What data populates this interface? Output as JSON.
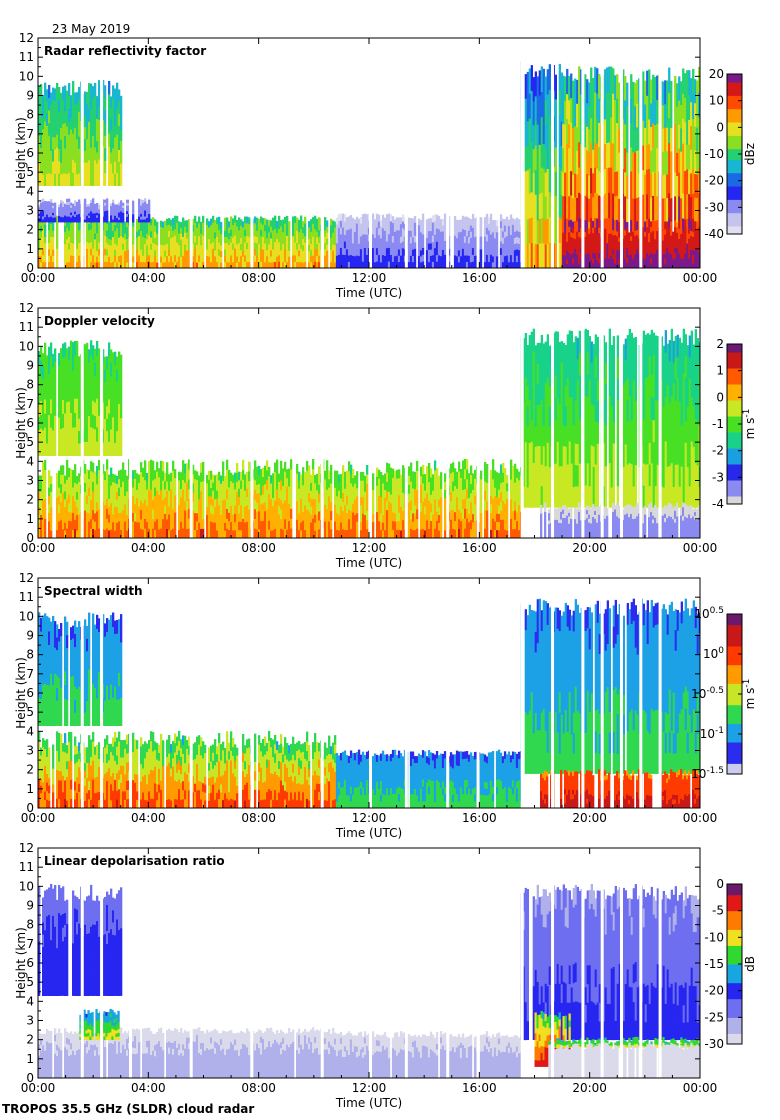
{
  "date": "23 May 2019",
  "footer": "TROPOS 35.5 GHz (SLDR) cloud radar",
  "colors": {
    "reflectivity": [
      "#e0e0f0",
      "#c4c4ee",
      "#8a8af2",
      "#2626f2",
      "#1a6ae6",
      "#19b6d0",
      "#24d070",
      "#8adf20",
      "#e6e020",
      "#ff9a00",
      "#ff4a00",
      "#d41818",
      "#7a1a8a"
    ],
    "velocity": [
      "#d8d8d8",
      "#8a8af0",
      "#2828ea",
      "#1aa0e0",
      "#18d28a",
      "#48e024",
      "#c8e824",
      "#ffb000",
      "#ff5a00",
      "#c81818",
      "#6a1a70"
    ],
    "width": [
      "#ccccf0",
      "#2c2cf0",
      "#1ca0e6",
      "#30d850",
      "#c8e626",
      "#ff9a00",
      "#ff3a00",
      "#c81818",
      "#6a1a6a"
    ],
    "ldr": [
      "#dadaea",
      "#b0b0ea",
      "#6e6ef0",
      "#2626f0",
      "#18a6e0",
      "#30d830",
      "#f0e020",
      "#ff7a00",
      "#e01818",
      "#6a1a6a"
    ]
  },
  "chart_data": [
    {
      "type": "heatmap",
      "title": "Radar reflectivity factor",
      "xlabel": "Time (UTC)",
      "ylabel": "Height (km)",
      "xticks": [
        "00:00",
        "04:00",
        "08:00",
        "12:00",
        "16:00",
        "20:00",
        "00:00"
      ],
      "yticks": [
        "0",
        "1",
        "2",
        "3",
        "4",
        "5",
        "6",
        "7",
        "8",
        "9",
        "10",
        "11",
        "12"
      ],
      "ylim": [
        0,
        12
      ],
      "xlim_hours": [
        0,
        24
      ],
      "colorbar": {
        "label": "dBz",
        "ticks": [
          "20",
          "10",
          "0",
          "-10",
          "-20",
          "-30",
          "-40"
        ],
        "palette": "reflectivity"
      },
      "features": [
        {
          "t0": 0.0,
          "t1": 3.0,
          "h0": 4.3,
          "h1": 9.2,
          "c0": 4,
          "c1": 8
        },
        {
          "t0": 0.0,
          "t1": 10.8,
          "h0": 0.0,
          "h1": 2.5,
          "c0": 5,
          "c1": 9
        },
        {
          "t0": 0.0,
          "t1": 4.0,
          "h0": 2.4,
          "h1": 3.4,
          "c0": 1,
          "c1": 3
        },
        {
          "t0": 10.8,
          "t1": 17.5,
          "h0": 0.0,
          "h1": 2.6,
          "c0": 0,
          "c1": 3
        },
        {
          "t0": 17.5,
          "t1": 19.0,
          "h0": 0.0,
          "h1": 10.2,
          "c0": 2,
          "c1": 9
        },
        {
          "t0": 19.0,
          "t1": 24.0,
          "h0": 0.0,
          "h1": 9.9,
          "c0": 3,
          "c1": 12
        },
        {
          "t0": 19.0,
          "t1": 24.0,
          "h0": 0.0,
          "h1": 1.9,
          "c0": 10,
          "c1": 12
        }
      ]
    },
    {
      "type": "heatmap",
      "title": "Doppler velocity",
      "xlabel": "Time (UTC)",
      "ylabel": "Height (km)",
      "xticks": [
        "00:00",
        "04:00",
        "08:00",
        "12:00",
        "16:00",
        "20:00",
        "00:00"
      ],
      "yticks": [
        "0",
        "1",
        "2",
        "3",
        "4",
        "5",
        "6",
        "7",
        "8",
        "9",
        "10",
        "11",
        "12"
      ],
      "ylim": [
        0,
        12
      ],
      "xlim_hours": [
        0,
        24
      ],
      "colorbar": {
        "label": "m s⁻¹",
        "ticks": [
          "2",
          "1",
          "0",
          "-1",
          "-2",
          "-3",
          "-4"
        ],
        "palette": "velocity"
      },
      "features": [
        {
          "t0": 0.0,
          "t1": 3.0,
          "h0": 4.3,
          "h1": 9.7,
          "c0": 4,
          "c1": 6
        },
        {
          "t0": 0.0,
          "t1": 17.5,
          "h0": 0.0,
          "h1": 3.5,
          "c0": 4,
          "c1": 8
        },
        {
          "t0": 17.5,
          "t1": 24.0,
          "h0": 1.6,
          "h1": 10.3,
          "c0": 3,
          "c1": 6
        },
        {
          "t0": 18.2,
          "t1": 24.0,
          "h0": 0.0,
          "h1": 1.6,
          "c0": 0,
          "c1": 1
        }
      ]
    },
    {
      "type": "heatmap",
      "title": "Spectral width",
      "xlabel": "Time (UTC)",
      "ylabel": "Height (km)",
      "xticks": [
        "00:00",
        "04:00",
        "08:00",
        "12:00",
        "16:00",
        "20:00",
        "00:00"
      ],
      "yticks": [
        "0",
        "1",
        "2",
        "3",
        "4",
        "5",
        "6",
        "7",
        "8",
        "9",
        "10",
        "11",
        "12"
      ],
      "ylim": [
        0,
        12
      ],
      "xlim_hours": [
        0,
        24
      ],
      "colorbar": {
        "label": "m s⁻¹",
        "ticks": [
          "10^0.5",
          "10^0",
          "10^-0.5",
          "10^-1",
          "10^-1.5"
        ],
        "palette": "width"
      },
      "features": [
        {
          "t0": 0.0,
          "t1": 3.0,
          "h0": 4.3,
          "h1": 9.6,
          "c0": 1,
          "c1": 3
        },
        {
          "t0": 0.0,
          "t1": 10.8,
          "h0": 0.0,
          "h1": 3.4,
          "c0": 2,
          "c1": 6
        },
        {
          "t0": 10.8,
          "t1": 17.5,
          "h0": 0.0,
          "h1": 2.8,
          "c0": 1,
          "c1": 3
        },
        {
          "t0": 17.5,
          "t1": 24.0,
          "h0": 1.8,
          "h1": 10.3,
          "c0": 1,
          "c1": 3
        },
        {
          "t0": 18.2,
          "t1": 24.0,
          "h0": 0.0,
          "h1": 1.8,
          "c0": 5,
          "c1": 7
        }
      ]
    },
    {
      "type": "heatmap",
      "title": "Linear depolarisation ratio",
      "xlabel": "Time (UTC)",
      "ylabel": "Height (km)",
      "xticks": [
        "00:00",
        "04:00",
        "08:00",
        "12:00",
        "16:00",
        "20:00",
        "00:00"
      ],
      "yticks": [
        "0",
        "1",
        "2",
        "3",
        "4",
        "5",
        "6",
        "7",
        "8",
        "9",
        "10",
        "11",
        "12"
      ],
      "ylim": [
        0,
        12
      ],
      "xlim_hours": [
        0,
        24
      ],
      "colorbar": {
        "label": "dB",
        "ticks": [
          "0",
          "-5",
          "-10",
          "-15",
          "-20",
          "-25",
          "-30"
        ],
        "palette": "ldr"
      },
      "features": [
        {
          "t0": 0.0,
          "t1": 3.0,
          "h0": 4.3,
          "h1": 9.5,
          "c0": 2,
          "c1": 3
        },
        {
          "t0": 0.0,
          "t1": 10.8,
          "h0": 0.0,
          "h1": 2.4,
          "c0": 0,
          "c1": 1
        },
        {
          "t0": 1.5,
          "t1": 3.0,
          "h0": 2.0,
          "h1": 3.4,
          "c0": 3,
          "c1": 6
        },
        {
          "t0": 10.8,
          "t1": 17.5,
          "h0": 0.0,
          "h1": 2.2,
          "c0": 0,
          "c1": 1
        },
        {
          "t0": 17.5,
          "t1": 24.0,
          "h0": 2.0,
          "h1": 9.5,
          "c0": 1,
          "c1": 3
        },
        {
          "t0": 18.0,
          "t1": 19.3,
          "h0": 0.6,
          "h1": 3.3,
          "c0": 4,
          "c1": 8
        },
        {
          "t0": 18.5,
          "t1": 24.0,
          "h0": 1.6,
          "h1": 1.9,
          "c0": 4,
          "c1": 6
        },
        {
          "t0": 18.5,
          "t1": 24.0,
          "h0": 0.0,
          "h1": 1.6,
          "c0": 0,
          "c1": 0
        }
      ]
    }
  ]
}
